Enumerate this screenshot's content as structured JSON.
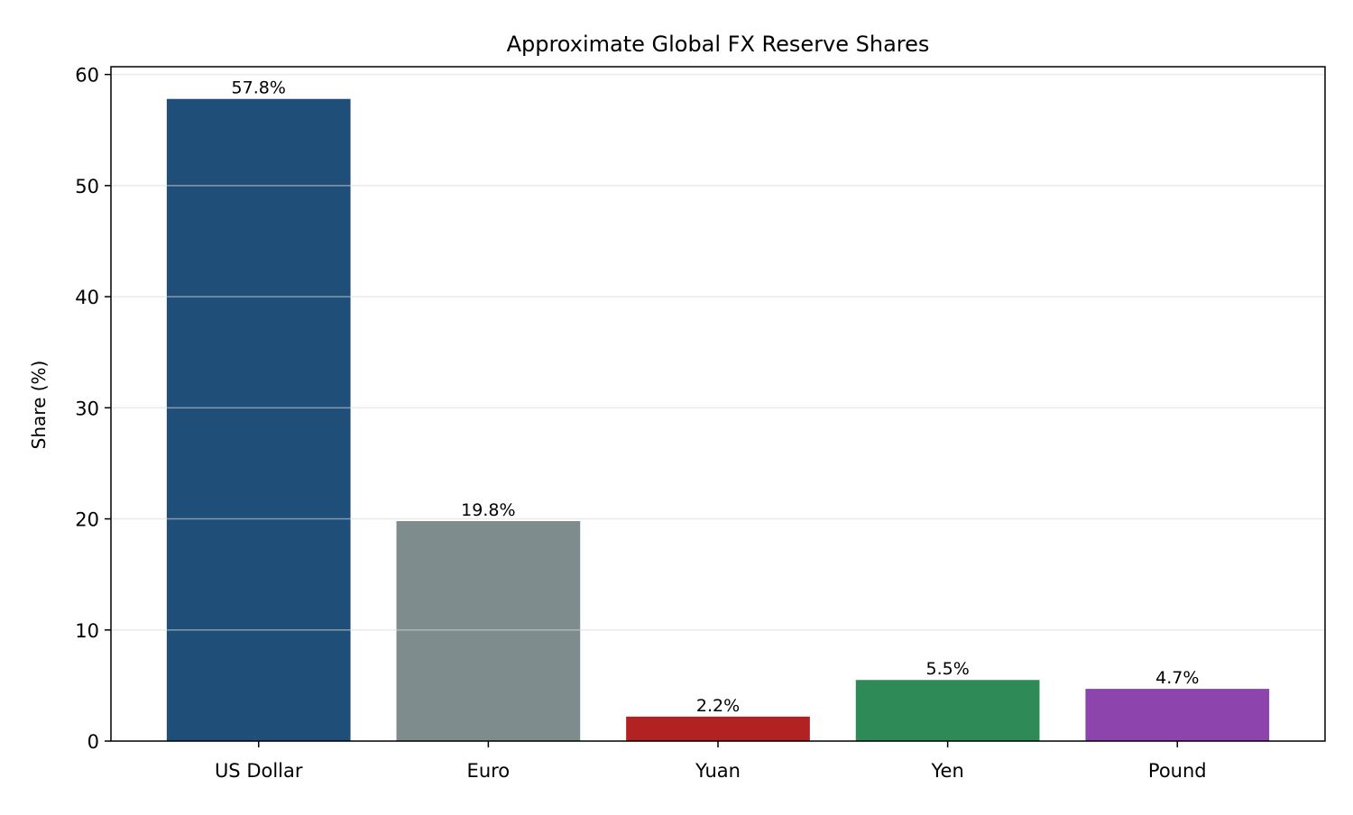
{
  "chart_data": {
    "type": "bar",
    "title": "Approximate Global FX Reserve Shares",
    "xlabel": "",
    "ylabel": "Share (%)",
    "categories": [
      "US Dollar",
      "Euro",
      "Yuan",
      "Yen",
      "Pound"
    ],
    "values": [
      57.8,
      19.8,
      2.2,
      5.5,
      4.7
    ],
    "data_labels": [
      "57.8%",
      "19.8%",
      "2.2%",
      "5.5%",
      "4.7%"
    ],
    "colors": [
      "#1f4e79",
      "#7f8c8d",
      "#b22222",
      "#2e8b57",
      "#8e44ad"
    ],
    "ylim": [
      0,
      60.7
    ],
    "yticks": [
      0,
      10,
      20,
      30,
      40,
      50,
      60
    ],
    "grid": "y",
    "legend": "none"
  }
}
